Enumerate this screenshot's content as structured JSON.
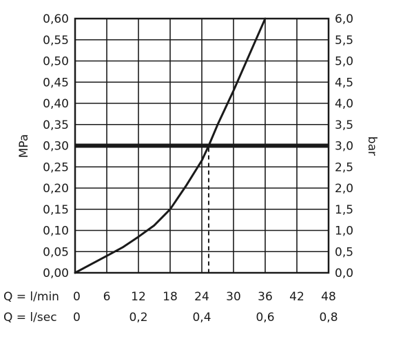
{
  "chart_data": {
    "type": "line",
    "title": "",
    "left_axis": {
      "label": "MPa",
      "ylim": [
        0,
        0.6
      ],
      "ticks": [
        "0,00",
        "0,05",
        "0,10",
        "0,15",
        "0,20",
        "0,25",
        "0,30",
        "0,35",
        "0,40",
        "0,45",
        "0,50",
        "0,55",
        "0,60"
      ]
    },
    "right_axis": {
      "label": "bar",
      "ylim": [
        0,
        6.0
      ],
      "ticks": [
        "0,0",
        "0,5",
        "1,0",
        "1,5",
        "2,0",
        "2,5",
        "3,0",
        "3,5",
        "4,0",
        "4,5",
        "5,0",
        "5,5",
        "6,0"
      ]
    },
    "x_axis_min": {
      "label": "Q = l/min",
      "xlim": [
        0,
        48
      ],
      "ticks": [
        "0",
        "6",
        "12",
        "18",
        "24",
        "30",
        "36",
        "42",
        "48"
      ]
    },
    "x_axis_sec": {
      "label": "Q = l/sec",
      "ticks": [
        "0",
        "0,2",
        "0,4",
        "0,6",
        "0,8"
      ]
    },
    "series": [
      {
        "x": [
          0,
          3,
          6,
          9,
          12,
          15,
          18,
          21,
          24,
          25.3,
          27,
          30,
          33,
          36
        ],
        "y": [
          0.0,
          0.02,
          0.04,
          0.06,
          0.085,
          0.112,
          0.15,
          0.205,
          0.265,
          0.3,
          0.35,
          0.43,
          0.515,
          0.6
        ]
      }
    ],
    "reference_line": {
      "y": 0.3
    },
    "marker": {
      "x": 25.3,
      "y": 0.3
    },
    "grid": true
  }
}
